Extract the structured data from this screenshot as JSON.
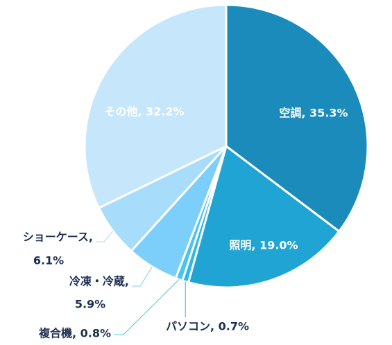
{
  "chart_data": {
    "type": "pie",
    "title": "",
    "start_angle_deg": 0,
    "direction": "clockwise",
    "slices": [
      {
        "label": "空調",
        "value": 35.3,
        "text": "空調, 35.3%",
        "color": "#1a8bbb",
        "label_inside": true
      },
      {
        "label": "照明",
        "value": 19.0,
        "text": "照明, 19.0%",
        "color": "#1fa4d4",
        "label_inside": true
      },
      {
        "label": "パソコン",
        "value": 0.7,
        "text": "パソコン, 0.7%",
        "color": "#2eb7ea",
        "label_inside": false
      },
      {
        "label": "複合機",
        "value": 0.8,
        "text": "複合機, 0.8%",
        "color": "#4cc4f1",
        "label_inside": false
      },
      {
        "label": "冷凍・冷蔵",
        "value": 5.9,
        "text_lines": [
          "冷凍・冷蔵,",
          "5.9%"
        ],
        "color": "#7ccffa",
        "label_inside": false
      },
      {
        "label": "ショーケース",
        "value": 6.1,
        "text_lines": [
          "ショーケース,",
          "6.1%"
        ],
        "color": "#a8dcfb",
        "label_inside": false
      },
      {
        "label": "その他",
        "value": 32.2,
        "text": "その他, 32.2%",
        "color": "#c6e6fb",
        "label_inside": true
      }
    ]
  }
}
